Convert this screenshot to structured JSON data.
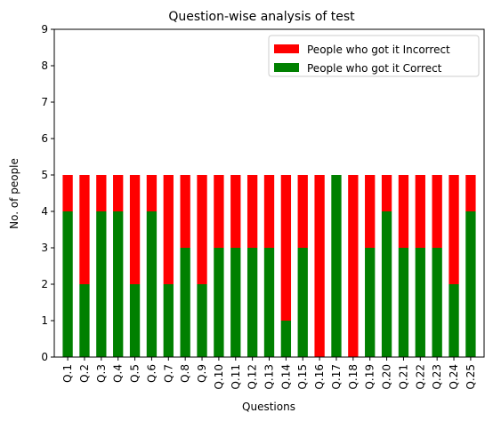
{
  "chart_data": {
    "type": "bar",
    "stacked": true,
    "title": "Question-wise analysis of test",
    "xlabel": "Questions",
    "ylabel": "No. of people",
    "ylim": [
      0,
      9
    ],
    "yticks": [
      0,
      1,
      2,
      3,
      4,
      5,
      6,
      7,
      8,
      9
    ],
    "grid": false,
    "legend_position": "top-right",
    "categories": [
      "Q.1",
      "Q.2",
      "Q.3",
      "Q.4",
      "Q.5",
      "Q.6",
      "Q.7",
      "Q.8",
      "Q.9",
      "Q.10",
      "Q.11",
      "Q.12",
      "Q.13",
      "Q.14",
      "Q.15",
      "Q.16",
      "Q.17",
      "Q.18",
      "Q.19",
      "Q.20",
      "Q.21",
      "Q.22",
      "Q.23",
      "Q.24",
      "Q.25"
    ],
    "series": [
      {
        "name": "People who got it Correct",
        "color": "#008000",
        "values": [
          4,
          2,
          4,
          4,
          2,
          4,
          2,
          3,
          2,
          3,
          3,
          3,
          3,
          1,
          3,
          0,
          5,
          0,
          3,
          4,
          3,
          3,
          3,
          2,
          4
        ]
      },
      {
        "name": "People who got it Incorrect",
        "color": "#ff0000",
        "values": [
          1,
          3,
          1,
          1,
          3,
          1,
          3,
          2,
          3,
          2,
          2,
          2,
          2,
          4,
          2,
          5,
          0,
          5,
          2,
          1,
          2,
          2,
          2,
          3,
          1
        ]
      }
    ],
    "legend_order": [
      "People who got it Incorrect",
      "People who got it Correct"
    ]
  }
}
